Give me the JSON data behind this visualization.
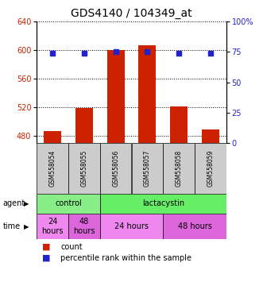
{
  "title": "GDS4140 / 104349_at",
  "samples": [
    "GSM558054",
    "GSM558055",
    "GSM558056",
    "GSM558057",
    "GSM558058",
    "GSM558059"
  ],
  "counts": [
    487,
    519,
    600,
    607,
    521,
    489
  ],
  "percentile_ranks": [
    74,
    74,
    75,
    75,
    74,
    74
  ],
  "ylim_left": [
    470,
    640
  ],
  "ylim_right": [
    0,
    100
  ],
  "left_ticks": [
    480,
    520,
    560,
    600,
    640
  ],
  "right_ticks": [
    0,
    25,
    50,
    75,
    100
  ],
  "bar_color": "#cc2200",
  "dot_color": "#2222cc",
  "bar_bottom": 470,
  "agent_groups": [
    {
      "label": "control",
      "start": 0,
      "end": 2,
      "color": "#88ee88"
    },
    {
      "label": "lactacystin",
      "start": 2,
      "end": 6,
      "color": "#66ee66"
    }
  ],
  "time_groups": [
    {
      "label": "24\nhours",
      "start": 0,
      "end": 1,
      "color": "#ee88ee"
    },
    {
      "label": "48\nhours",
      "start": 1,
      "end": 2,
      "color": "#dd66dd"
    },
    {
      "label": "24 hours",
      "start": 2,
      "end": 4,
      "color": "#ee88ee"
    },
    {
      "label": "48 hours",
      "start": 4,
      "end": 6,
      "color": "#dd66dd"
    }
  ],
  "background_color": "#ffffff",
  "left_axis_color": "#cc2200",
  "right_axis_color": "#2222cc",
  "title_fontsize": 10,
  "tick_fontsize": 7,
  "sample_fontsize": 5.5,
  "annot_fontsize": 7,
  "legend_fontsize": 7
}
